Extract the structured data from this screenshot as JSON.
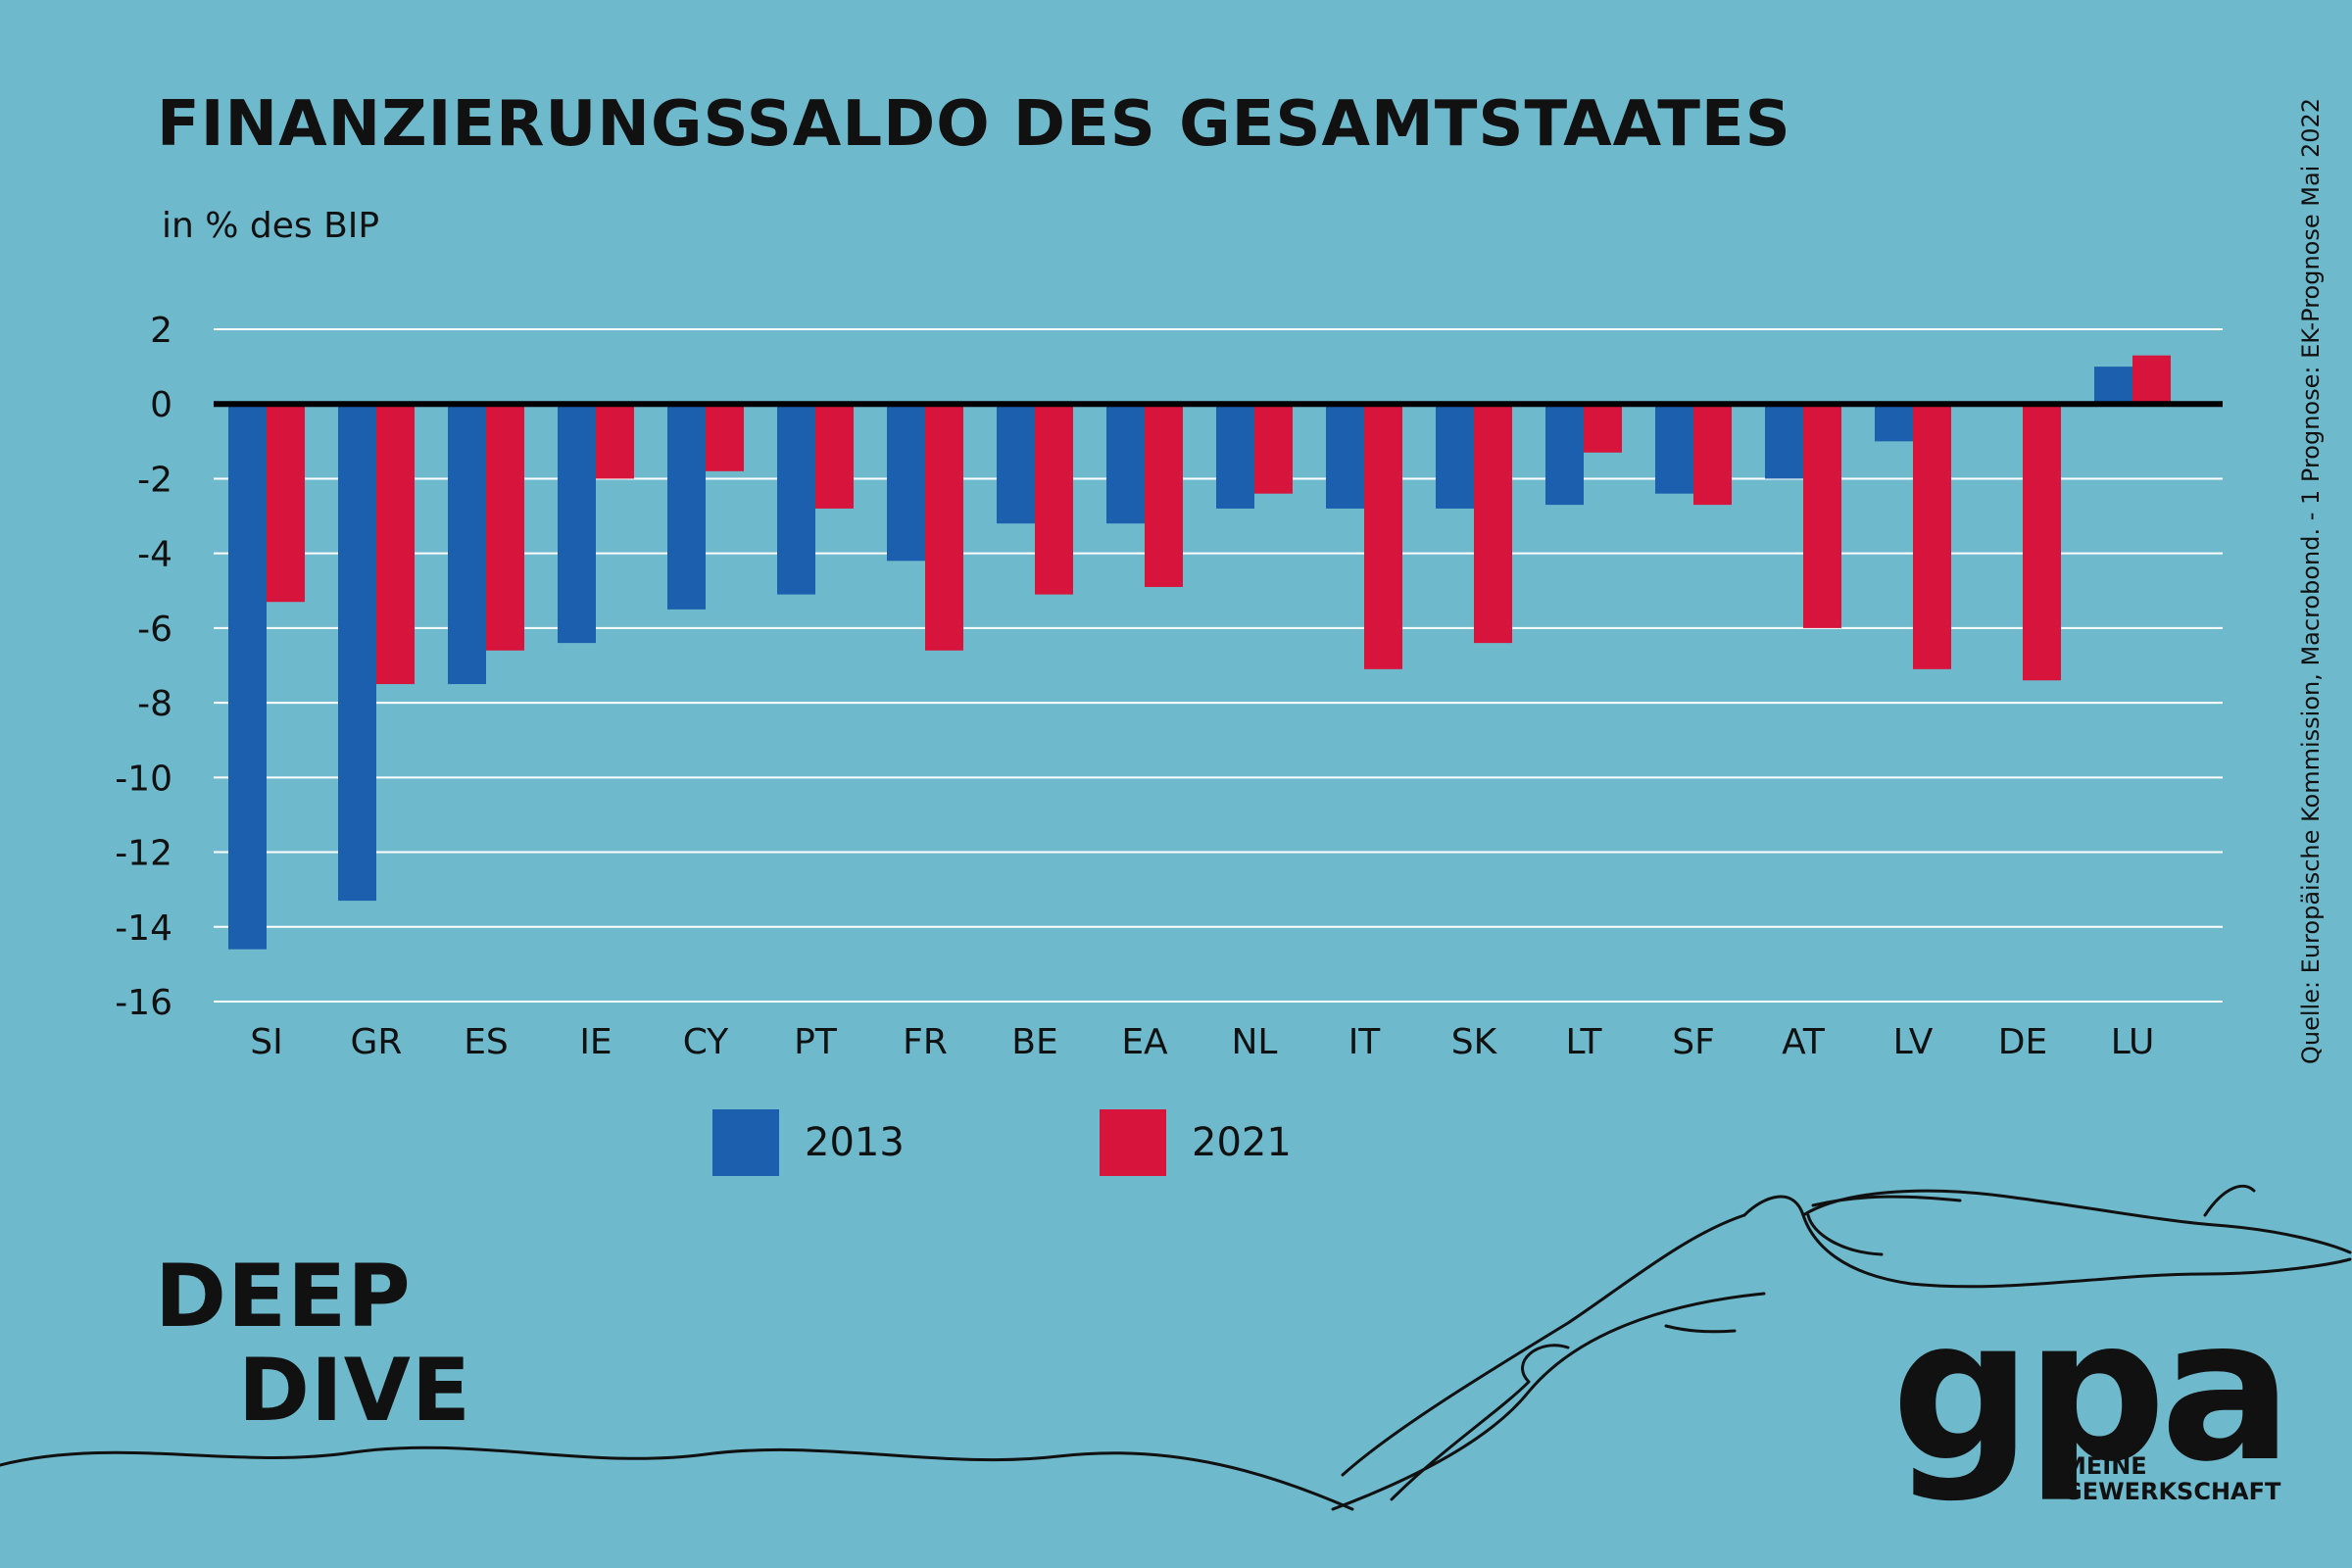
{
  "header": {
    "title": "FINANZIERUNGSSALDO DES GESAMTSTAATES",
    "subtitle": "in % des BIP",
    "source": "Quelle: Europäische Kommission, Macrobond. - 1 Prognose: EK-Prognose Mai 2022"
  },
  "chart_data": {
    "type": "bar",
    "categories": [
      "SI",
      "GR",
      "ES",
      "IE",
      "CY",
      "PT",
      "FR",
      "BE",
      "EA",
      "NL",
      "IT",
      "SK",
      "LT",
      "SF",
      "AT",
      "LV",
      "DE",
      "LU"
    ],
    "series": [
      {
        "name": "2013",
        "color": "#1b5fae",
        "values": [
          -14.6,
          -13.3,
          -7.5,
          -6.4,
          -5.5,
          -5.1,
          -4.2,
          -3.2,
          -3.2,
          -2.8,
          -2.8,
          -2.8,
          -2.7,
          -2.4,
          -2.0,
          -1.0,
          0.0,
          1.0
        ]
      },
      {
        "name": "2021",
        "color": "#d7143b",
        "values": [
          -5.3,
          -7.5,
          -6.6,
          -2.0,
          -1.8,
          -2.8,
          -6.6,
          -5.1,
          -4.9,
          -2.4,
          -7.1,
          -6.4,
          -1.3,
          -2.7,
          -6.0,
          -7.1,
          -7.4,
          1.3
        ]
      }
    ],
    "yticks": [
      2,
      0,
      -2,
      -4,
      -6,
      -8,
      -10,
      -12,
      -14,
      -16
    ],
    "ylim": [
      -16,
      2
    ],
    "grid": true,
    "legend": "bottom"
  },
  "brand": {
    "line1": "DEEP",
    "line2": "DIVE"
  },
  "logo": {
    "word": "gpa",
    "sub1": "MEINE",
    "sub2": "GEWERKSCHAFT"
  },
  "colors": {
    "background": "#6fb9cd",
    "grid": "#ffffff",
    "axis": "#000000"
  }
}
